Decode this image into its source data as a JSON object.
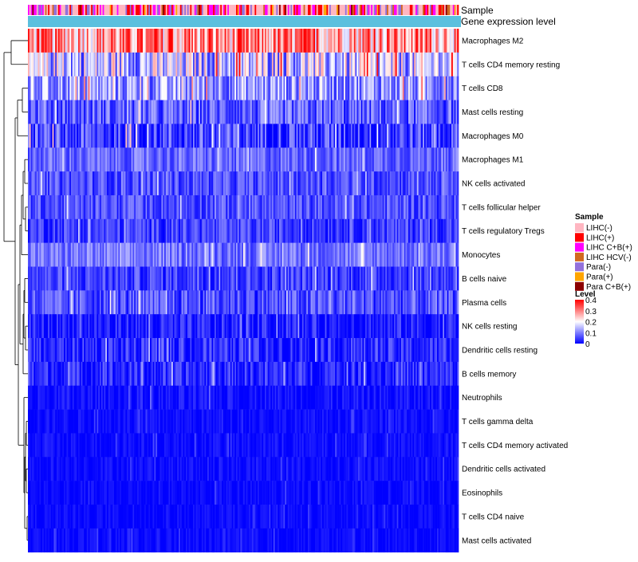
{
  "chart_data": {
    "type": "heatmap",
    "annotation_tracks": [
      "Sample",
      "Gene expression level"
    ],
    "rows": [
      {
        "label": "Macrophages M2",
        "mean": 0.28,
        "spread": 0.12
      },
      {
        "label": "T cells CD4 memory resting",
        "mean": 0.15,
        "spread": 0.12
      },
      {
        "label": "T cells CD8",
        "mean": 0.12,
        "spread": 0.09
      },
      {
        "label": "Mast cells resting",
        "mean": 0.07,
        "spread": 0.07
      },
      {
        "label": "Macrophages M0",
        "mean": 0.05,
        "spread": 0.08
      },
      {
        "label": "Macrophages M1",
        "mean": 0.08,
        "spread": 0.05
      },
      {
        "label": "NK cells activated",
        "mean": 0.06,
        "spread": 0.05
      },
      {
        "label": "T cells follicular helper",
        "mean": 0.06,
        "spread": 0.05
      },
      {
        "label": "T cells regulatory  Tregs",
        "mean": 0.05,
        "spread": 0.05
      },
      {
        "label": "Monocytes",
        "mean": 0.09,
        "spread": 0.05
      },
      {
        "label": "B cells naive",
        "mean": 0.05,
        "spread": 0.05
      },
      {
        "label": "Plasma cells",
        "mean": 0.06,
        "spread": 0.06
      },
      {
        "label": "NK cells resting",
        "mean": 0.02,
        "spread": 0.05
      },
      {
        "label": "Dendritic cells resting",
        "mean": 0.03,
        "spread": 0.05
      },
      {
        "label": "B cells memory",
        "mean": 0.03,
        "spread": 0.05
      },
      {
        "label": "Neutrophils",
        "mean": 0.01,
        "spread": 0.03
      },
      {
        "label": "T cells gamma delta",
        "mean": 0.01,
        "spread": 0.02
      },
      {
        "label": "T cells CD4 memory activated",
        "mean": 0.01,
        "spread": 0.02
      },
      {
        "label": "Dendritic cells activated",
        "mean": 0.01,
        "spread": 0.02
      },
      {
        "label": "Eosinophils",
        "mean": 0.005,
        "spread": 0.02
      },
      {
        "label": "T cells CD4 naive",
        "mean": 0.005,
        "spread": 0.02
      },
      {
        "label": "Mast cells activated",
        "mean": 0.005,
        "spread": 0.02
      }
    ],
    "n_samples": 300,
    "sample_groups": [
      {
        "name": "LIHC(-)",
        "color": "#FFB6C1"
      },
      {
        "name": "LIHC(+)",
        "color": "#FF0000"
      },
      {
        "name": "LIHC C+B(+)",
        "color": "#FF00FF"
      },
      {
        "name": "LIHC HCV(-)",
        "color": "#D2691E"
      },
      {
        "name": "Para(-)",
        "color": "#9370DB"
      },
      {
        "name": "Para(+)",
        "color": "#FFA500"
      },
      {
        "name": "Para C+B(+)",
        "color": "#8B0000"
      }
    ],
    "gene_expression_color": "#5BC0DE",
    "color_scale": {
      "title": "Level",
      "ticks": [
        "0.4",
        "0.3",
        "0.2",
        "0.1",
        "0"
      ],
      "tick_values": [
        0.4,
        0.3,
        0.2,
        0.1,
        0
      ],
      "min": 0,
      "max": 0.4,
      "stops": [
        {
          "value": 0.0,
          "color": "#0000FF"
        },
        {
          "value": 0.2,
          "color": "#FFFFFF"
        },
        {
          "value": 0.4,
          "color": "#FF0000"
        }
      ]
    },
    "legend": {
      "sample_title": "Sample",
      "level_title": "Level"
    },
    "dendrogram_side": "left"
  }
}
